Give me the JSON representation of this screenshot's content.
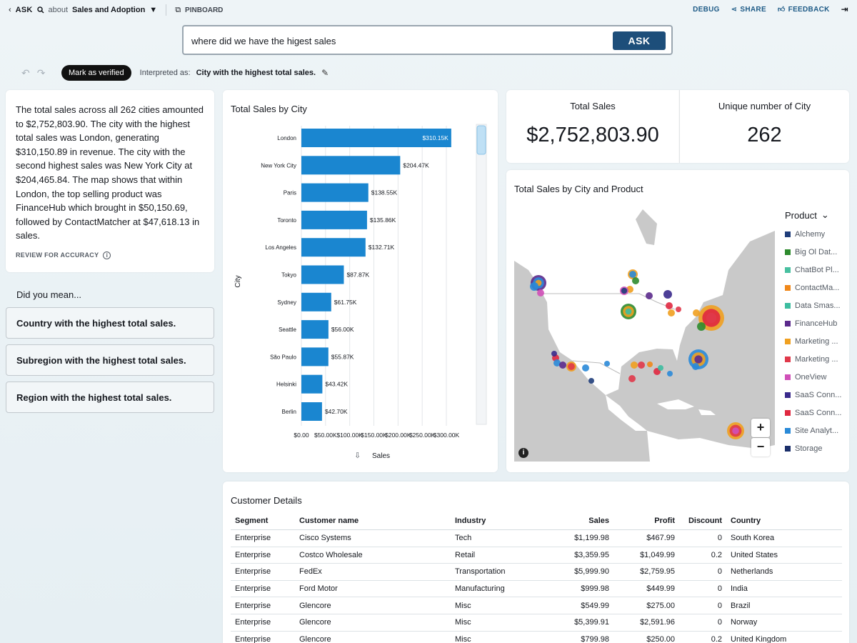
{
  "topbar": {
    "back_icon": "chevron-left-icon",
    "ask_label": "ASK",
    "about_label": "about",
    "topic": "Sales and Adoption",
    "pinboard_label": "PINBOARD",
    "debug_label": "DEBUG",
    "share_label": "SHARE",
    "feedback_label": "FEEDBACK"
  },
  "ask": {
    "query": "where did we have the higest sales",
    "button_label": "ASK"
  },
  "interpretation": {
    "verify_label": "Mark as verified",
    "label": "Interpreted as:",
    "text": "City with the highest total sales."
  },
  "summary": {
    "text": "The total sales across all 262 cities amounted to $2,752,803.90. The city with the highest total sales was London, generating $310,150.89 in revenue. The city with the second highest sales was New York City at $204,465.84. The map shows that within London, the top selling product was FinanceHub which brought in $50,150.69, followed by ContactMatcher at $47,618.13 in sales.",
    "review_label": "REVIEW FOR ACCURACY"
  },
  "did_you_mean": {
    "title": "Did you mean...",
    "suggestions": [
      "Country with the highest total sales.",
      "Subregion with the highest total sales.",
      "Region with the highest total sales."
    ]
  },
  "bar_chart": {
    "title": "Total Sales by City",
    "accent": "#1a86d0"
  },
  "chart_data": {
    "type": "bar",
    "orientation": "horizontal",
    "title": "Total Sales by City",
    "xlabel": "Sales",
    "ylabel": "City",
    "xlim": [
      0,
      300000
    ],
    "x_ticks": [
      "$0.00",
      "$50.00K",
      "$100.00K",
      "$150.00K",
      "$200.00K",
      "$250.00K",
      "$300.00K"
    ],
    "categories": [
      "London",
      "New York City",
      "Paris",
      "Toronto",
      "Los Angeles",
      "Tokyo",
      "Sydney",
      "Seattle",
      "São Paulo",
      "Helsinki",
      "Berlin"
    ],
    "values": [
      310150,
      204470,
      138550,
      135860,
      132710,
      87870,
      61750,
      56000,
      55870,
      43420,
      42700
    ],
    "data_labels": [
      "$310.15K",
      "$204.47K",
      "$138.55K",
      "$135.86K",
      "$132.71K",
      "$87.87K",
      "$61.75K",
      "$56.00K",
      "$55.87K",
      "$43.42K",
      "$42.70K"
    ],
    "grid": true
  },
  "kpis": [
    {
      "label": "Total Sales",
      "value": "$2,752,803.90"
    },
    {
      "label": "Unique number of City",
      "value": "262"
    }
  ],
  "map": {
    "title": "Total Sales by City and Product",
    "zoom_in": "+",
    "zoom_out": "−",
    "info": "i",
    "legend_title": "Product",
    "legend": [
      {
        "name": "Alchemy",
        "color": "#1f3d7a"
      },
      {
        "name": "Big Ol Dat...",
        "color": "#2e8b2e"
      },
      {
        "name": "ChatBot Pl...",
        "color": "#48c0a0"
      },
      {
        "name": "ContactMa...",
        "color": "#f0881a"
      },
      {
        "name": "Data Smas...",
        "color": "#3dbda0"
      },
      {
        "name": "FinanceHub",
        "color": "#5b2a8c"
      },
      {
        "name": "Marketing ...",
        "color": "#f0a020"
      },
      {
        "name": "Marketing ...",
        "color": "#e0384a"
      },
      {
        "name": "OneView",
        "color": "#d050b8"
      },
      {
        "name": "SaaS Conn...",
        "color": "#3a2a8c"
      },
      {
        "name": "SaaS Conn...",
        "color": "#e02840"
      },
      {
        "name": "Site Analyt...",
        "color": "#2a8ad8"
      },
      {
        "name": "Storage",
        "color": "#1a2e6a"
      }
    ]
  },
  "table": {
    "title": "Customer Details",
    "columns": [
      "Segment",
      "Customer name",
      "Industry",
      "Sales",
      "Profit",
      "Discount",
      "Country"
    ],
    "rows": [
      [
        "Enterprise",
        "Cisco Systems",
        "Tech",
        "$1,199.98",
        "$467.99",
        "0",
        "South Korea"
      ],
      [
        "Enterprise",
        "Costco Wholesale",
        "Retail",
        "$3,359.95",
        "$1,049.99",
        "0.2",
        "United States"
      ],
      [
        "Enterprise",
        "FedEx",
        "Transportation",
        "$5,999.90",
        "$2,759.95",
        "0",
        "Netherlands"
      ],
      [
        "Enterprise",
        "Ford Motor",
        "Manufacturing",
        "$999.98",
        "$449.99",
        "0",
        "India"
      ],
      [
        "Enterprise",
        "Glencore",
        "Misc",
        "$549.99",
        "$275.00",
        "0",
        "Brazil"
      ],
      [
        "Enterprise",
        "Glencore",
        "Misc",
        "$5,399.91",
        "$2,591.96",
        "0",
        "Norway"
      ],
      [
        "Enterprise",
        "Glencore",
        "Misc",
        "$799.98",
        "$250.00",
        "0.2",
        "United Kingdom"
      ]
    ]
  }
}
